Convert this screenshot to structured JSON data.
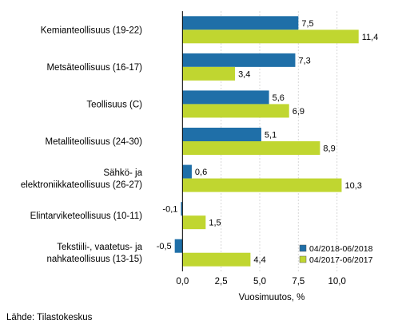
{
  "chart_data": {
    "type": "bar",
    "orientation": "horizontal",
    "categories": [
      [
        "Kemianteollisuus (19-22)"
      ],
      [
        "Metsäteollisuus (16-17)"
      ],
      [
        "Teollisuus (C)"
      ],
      [
        "Metalliteollisuus (24-30)"
      ],
      [
        "Sähkö- ja",
        "elektroniikkateollisuus (26-27)"
      ],
      [
        "Elintarviketeollisuus (10-11)"
      ],
      [
        "Tekstiili-, vaatetus- ja",
        "nahkateollisuus (13-15)"
      ]
    ],
    "series": [
      {
        "name": "04/2018-06/2018",
        "color": "#1f6fa8",
        "values": [
          7.5,
          7.3,
          5.6,
          5.1,
          0.6,
          -0.1,
          -0.5
        ],
        "labels": [
          "7,5",
          "7,3",
          "5,6",
          "5,1",
          "0,6",
          "-0,1",
          "-0,5"
        ]
      },
      {
        "name": "04/2017-06/2017",
        "color": "#c0d630",
        "values": [
          11.4,
          3.4,
          6.9,
          8.9,
          10.3,
          1.5,
          4.4
        ],
        "labels": [
          "11,4",
          "3,4",
          "6,9",
          "8,9",
          "10,3",
          "1,5",
          "4,4"
        ]
      }
    ],
    "xlim": [
      -2.5,
      12.5
    ],
    "xticks": [
      0,
      2.5,
      5,
      7.5,
      10
    ],
    "xtick_labels": [
      "0,0",
      "2,5",
      "5,0",
      "7,5",
      "10,0"
    ],
    "xlabel": "Vuosimuutos, %",
    "ylabel": "",
    "grid": true,
    "legend": "bottom-right"
  },
  "source": "Lähde: Tilastokeskus"
}
